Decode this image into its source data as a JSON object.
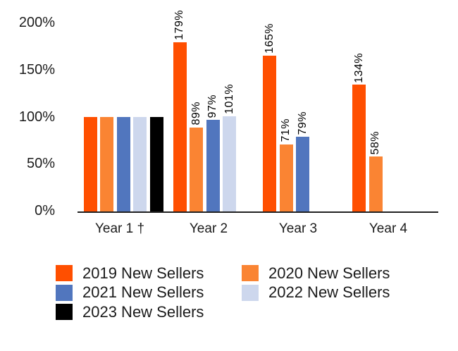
{
  "chart_data": {
    "type": "bar",
    "title": "",
    "categories": [
      "Year 1 †",
      "Year 2",
      "Year 3",
      "Year 4"
    ],
    "series": [
      {
        "name": "2019 New Sellers",
        "color": "#FF4F00",
        "values": [
          100,
          179,
          165,
          134
        ],
        "labels": [
          "",
          "179%",
          "165%",
          "134%"
        ]
      },
      {
        "name": "2020 New Sellers",
        "color": "#FA8433",
        "values": [
          100,
          89,
          71,
          58
        ],
        "labels": [
          "",
          "89%",
          "71%",
          "58%"
        ]
      },
      {
        "name": "2021 New Sellers",
        "color": "#5176BE",
        "values": [
          100,
          97,
          79,
          null
        ],
        "labels": [
          "",
          "97%",
          "79%",
          ""
        ]
      },
      {
        "name": "2022 New Sellers",
        "color": "#CDD7ED",
        "values": [
          100,
          101,
          null,
          null
        ],
        "labels": [
          "",
          "101%",
          "",
          ""
        ]
      },
      {
        "name": "2023 New Sellers",
        "color": "#000000",
        "values": [
          100,
          null,
          null,
          null
        ],
        "labels": [
          "",
          "",
          "",
          ""
        ]
      }
    ],
    "y_axis": {
      "ticks": [
        "0%",
        "50%",
        "100%",
        "150%",
        "200%"
      ],
      "range": [
        0,
        200
      ]
    },
    "grid": false,
    "value_labels_rotated": true,
    "legend_position": "bottom",
    "legend_columns": [
      [
        0,
        2,
        4
      ],
      [
        1,
        3
      ]
    ],
    "axis_line_color": "#212121",
    "text_color": "#1c1c1c"
  }
}
